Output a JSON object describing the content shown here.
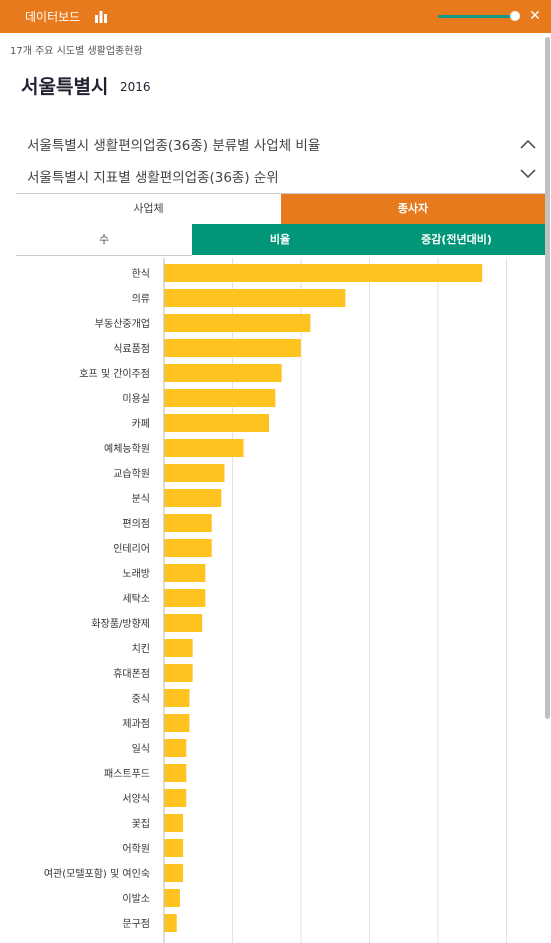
{
  "header": {
    "title": "데이터보드"
  },
  "breadcrumb": "17개 주요 시도별 생활업종현황",
  "region": {
    "name": "서울특별시",
    "year": "2016"
  },
  "sections": [
    {
      "label": "서울특별시 생활편의업종(36종) 분류별 사업체 비율"
    },
    {
      "label": "서울특별시 지표별 생활편의업종(36종) 순위"
    }
  ],
  "tabs1": {
    "business": "사업체",
    "employees": "종사자"
  },
  "tabs2": {
    "count": "수",
    "ratio": "비율",
    "change": "증감(전년대비)"
  },
  "colors": {
    "orange": "#E87A1E",
    "teal": "#009677",
    "bar": "#FFC31F"
  },
  "chart_data": {
    "type": "bar",
    "orientation": "horizontal",
    "categories": [
      "한식",
      "의류",
      "부동산중개업",
      "식료품점",
      "호프 및 간이주점",
      "미용실",
      "카페",
      "예체능학원",
      "교습학원",
      "분식",
      "편의점",
      "인테리어",
      "노래방",
      "세탁소",
      "화장품/방향제",
      "치킨",
      "휴대폰점",
      "중식",
      "제과점",
      "일식",
      "패스트푸드",
      "서양식",
      "꽃집",
      "어학원",
      "여관(모텔포함) 및 여인숙",
      "이발소",
      "문구점"
    ],
    "values": [
      100,
      57,
      46,
      43,
      37,
      35,
      33,
      25,
      19,
      18,
      15,
      15,
      13,
      13,
      12,
      9,
      9,
      8,
      8,
      7,
      7,
      7,
      6,
      6,
      6,
      5,
      4
    ],
    "xlim": [
      0,
      110
    ],
    "grid": true
  }
}
